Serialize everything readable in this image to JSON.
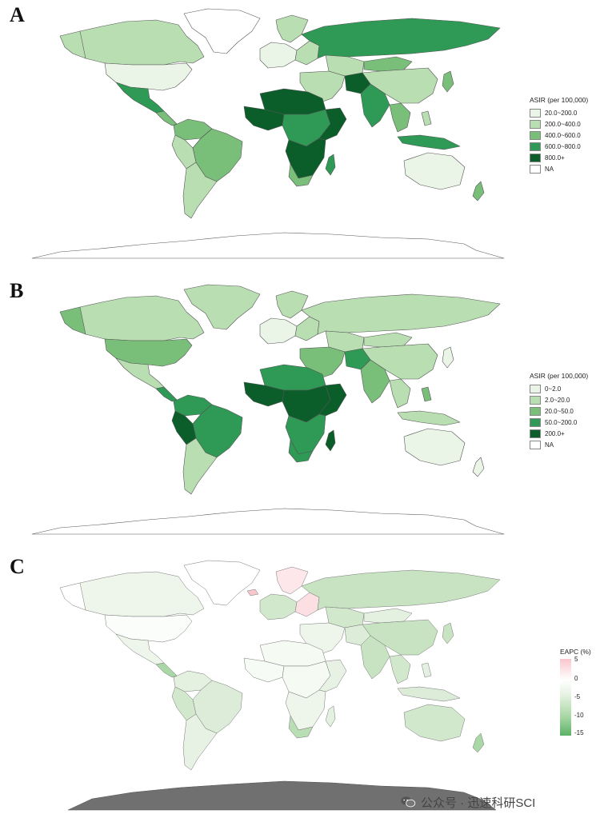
{
  "panels": [
    {
      "letter": "A",
      "legend": {
        "title": "ASIR (per 100,000)",
        "items": [
          {
            "label": "20.0~200.0",
            "color": "#eaf5e8"
          },
          {
            "label": "200.0~400.0",
            "color": "#b9deb2"
          },
          {
            "label": "400.0~600.0",
            "color": "#79bf7a"
          },
          {
            "label": "600.0~800.0",
            "color": "#2e9a55"
          },
          {
            "label": "800.0+",
            "color": "#0b5e2a"
          },
          {
            "label": "NA",
            "color": "#ffffff"
          }
        ]
      }
    },
    {
      "letter": "B",
      "legend": {
        "title": "ASIR (per 100,000)",
        "items": [
          {
            "label": "0~2.0",
            "color": "#eaf5e8"
          },
          {
            "label": "2.0~20.0",
            "color": "#b9deb2"
          },
          {
            "label": "20.0~50.0",
            "color": "#79bf7a"
          },
          {
            "label": "50.0~200.0",
            "color": "#2e9a55"
          },
          {
            "label": "200.0+",
            "color": "#0b5e2a"
          },
          {
            "label": "NA",
            "color": "#ffffff"
          }
        ]
      }
    },
    {
      "letter": "C",
      "legend": {
        "title": "EAPC (%)",
        "ticks": [
          "5",
          "0",
          "-5",
          "-10",
          "-15"
        ],
        "gradient": [
          "#f8c7cd",
          "#ffffff",
          "#e9f3e5",
          "#a9d7a5",
          "#5cb267"
        ]
      }
    }
  ],
  "watermark": {
    "text": "公众号 · 迅速科研SCI",
    "icon": "wechat-icon"
  },
  "colors": {
    "antarctica_c": "#707070",
    "outline": "#555555"
  }
}
